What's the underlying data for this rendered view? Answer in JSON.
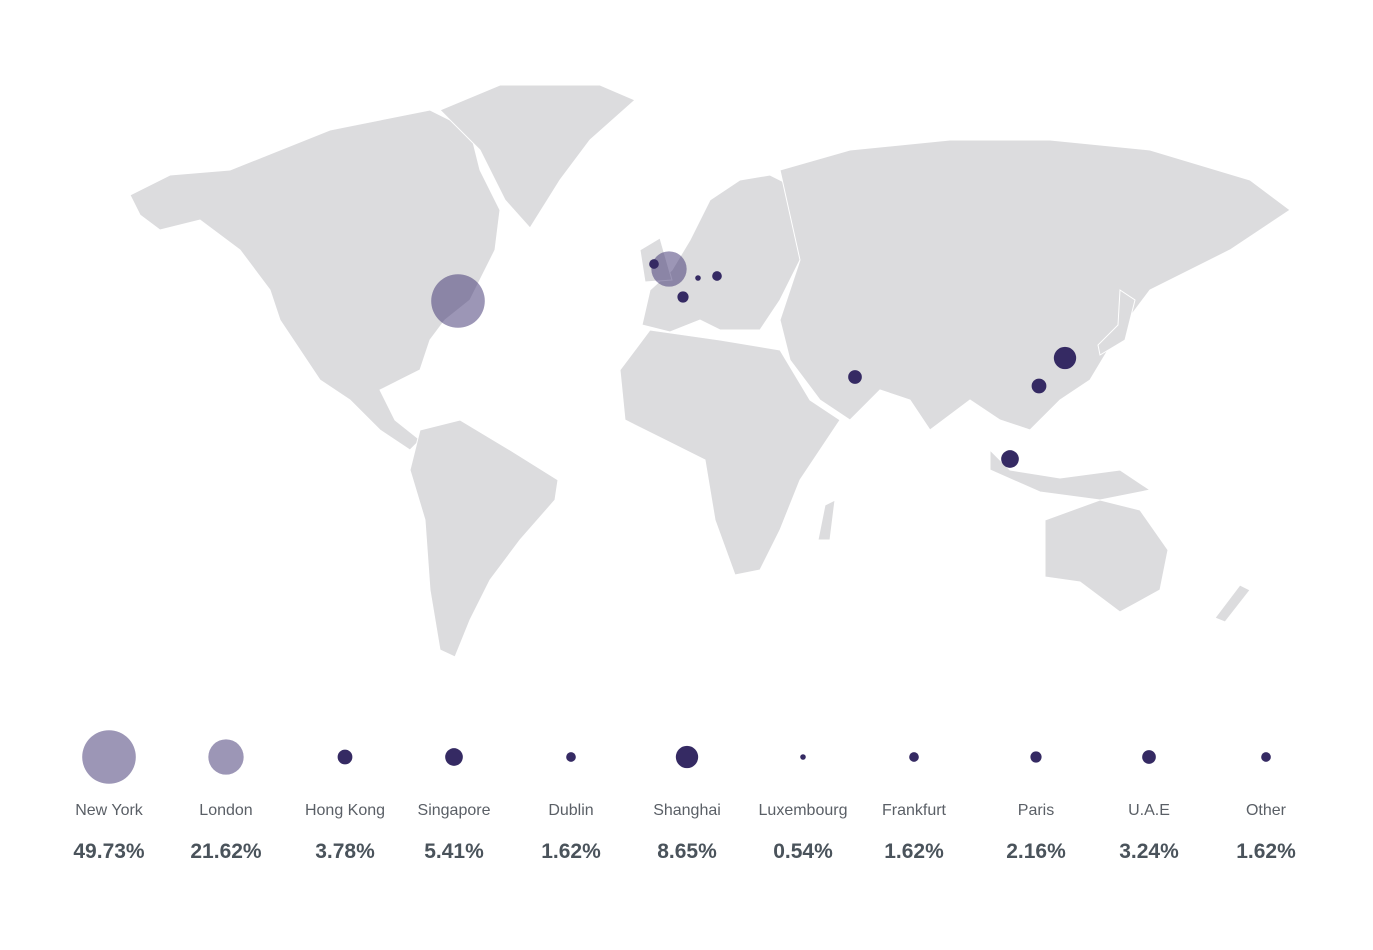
{
  "colors": {
    "land": "#dcdcde",
    "large_bubble": "#3a2d6e",
    "small_bubble": "#352a63",
    "label": "#5a5f66",
    "value": "#4a535b"
  },
  "chart_data": {
    "type": "bubble-map",
    "locations": [
      {
        "name": "New York",
        "value": "49.73%",
        "percent": 49.73
      },
      {
        "name": "London",
        "value": "21.62%",
        "percent": 21.62
      },
      {
        "name": "Hong Kong",
        "value": "3.78%",
        "percent": 3.78
      },
      {
        "name": "Singapore",
        "value": "5.41%",
        "percent": 5.41
      },
      {
        "name": "Dublin",
        "value": "1.62%",
        "percent": 1.62
      },
      {
        "name": "Shanghai",
        "value": "8.65%",
        "percent": 8.65
      },
      {
        "name": "Luxembourg",
        "value": "0.54%",
        "percent": 0.54
      },
      {
        "name": "Frankfurt",
        "value": "1.62%",
        "percent": 1.62
      },
      {
        "name": "Paris",
        "value": "2.16%",
        "percent": 2.16
      },
      {
        "name": "U.A.E",
        "value": "3.24%",
        "percent": 3.24
      },
      {
        "name": "Other",
        "value": "1.62%",
        "percent": 1.62
      }
    ]
  }
}
